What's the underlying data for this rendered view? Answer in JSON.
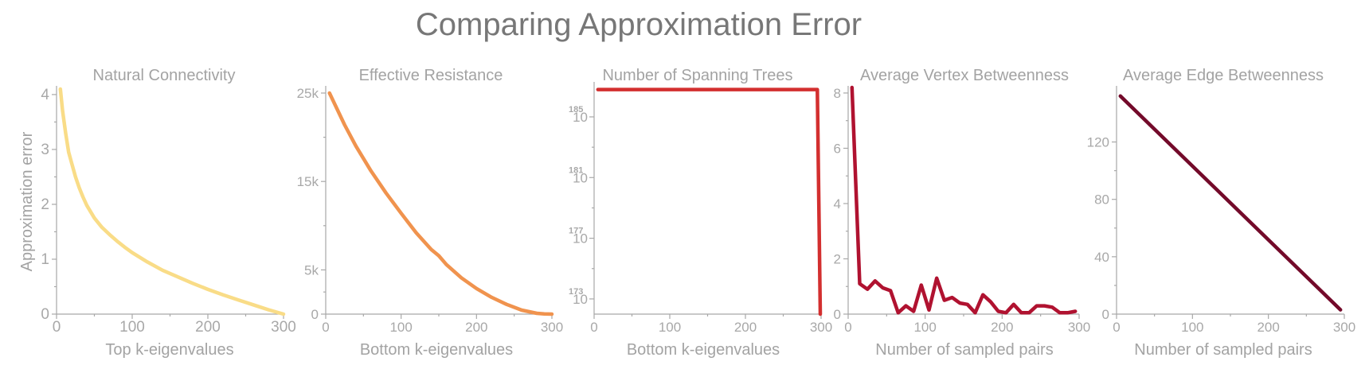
{
  "title": "Comparing Approximation Error",
  "colors": {
    "natural": "#f9dc87",
    "resistance": "#f0934e",
    "spanning": "#d32f2f",
    "vertex": "#b01230",
    "edge": "#730a2a",
    "axis": "#a8a8a8"
  },
  "chart_data": [
    {
      "type": "line",
      "title": "Natural Connectivity",
      "xlabel": "Top k-eigenvalues",
      "ylabel": "Approximation error",
      "xlim": [
        0,
        300
      ],
      "ylim": [
        0,
        4.1
      ],
      "xticks": [
        0,
        100,
        200,
        300
      ],
      "xtick_labels": [
        "0",
        "100",
        "200",
        "300"
      ],
      "yticks": [
        0,
        1,
        2,
        3,
        4
      ],
      "ytick_labels": [
        "0",
        "1",
        "2",
        "3",
        "4"
      ],
      "series": [
        {
          "color": "#f9dc87",
          "x": [
            5,
            8,
            12,
            16,
            20,
            25,
            30,
            35,
            40,
            50,
            60,
            70,
            80,
            90,
            100,
            120,
            140,
            160,
            180,
            200,
            220,
            240,
            260,
            280,
            300
          ],
          "y": [
            4.1,
            3.7,
            3.3,
            2.95,
            2.75,
            2.5,
            2.3,
            2.13,
            1.98,
            1.75,
            1.58,
            1.45,
            1.33,
            1.22,
            1.12,
            0.95,
            0.8,
            0.68,
            0.56,
            0.45,
            0.35,
            0.26,
            0.17,
            0.08,
            0.0
          ]
        }
      ]
    },
    {
      "type": "line",
      "title": "Effective Resistance",
      "xlabel": "Bottom k-eigenvalues",
      "xlim": [
        0,
        300
      ],
      "ylim": [
        0,
        25000
      ],
      "xticks": [
        0,
        100,
        200,
        300
      ],
      "xtick_labels": [
        "0",
        "100",
        "200",
        "300"
      ],
      "yticks": [
        0,
        5000,
        15000,
        25000
      ],
      "ytick_labels": [
        "0",
        "5k",
        "15k",
        "25k"
      ],
      "series": [
        {
          "color": "#f0934e",
          "x": [
            5,
            15,
            25,
            40,
            60,
            80,
            100,
            120,
            140,
            150,
            160,
            180,
            200,
            220,
            240,
            260,
            280,
            290,
            300
          ],
          "y": [
            25000,
            23200,
            21400,
            19000,
            16200,
            13700,
            11400,
            9200,
            7300,
            6600,
            5600,
            4100,
            2900,
            1900,
            1100,
            450,
            90,
            20,
            0
          ]
        }
      ]
    },
    {
      "type": "line",
      "title": "Number of Spanning Trees",
      "xlabel": "Bottom k-eigenvalues",
      "xlim": [
        0,
        300
      ],
      "ylim": [
        172,
        187.2
      ],
      "yscale": "log",
      "xticks": [
        0,
        100,
        200,
        300
      ],
      "xtick_labels": [
        "0",
        "100",
        "200",
        "300"
      ],
      "yticks": [
        173,
        177,
        181,
        185
      ],
      "ytick_base": "10",
      "ytick_exponents": [
        "173",
        "177",
        "181",
        "185"
      ],
      "series": [
        {
          "color": "#d32f2f",
          "x": [
            5,
            295,
            299
          ],
          "y": [
            186.8,
            186.8,
            172
          ]
        }
      ]
    },
    {
      "type": "line",
      "title": "Average Vertex Betweenness",
      "xlabel": "Number of sampled pairs",
      "xlim": [
        0,
        300
      ],
      "ylim": [
        0,
        8.2
      ],
      "xticks": [
        0,
        100,
        200,
        300
      ],
      "xtick_labels": [
        "0",
        "100",
        "200",
        "300"
      ],
      "yticks": [
        0,
        2,
        4,
        6,
        8
      ],
      "ytick_labels": [
        "0",
        "2",
        "4",
        "6",
        "8"
      ],
      "series": [
        {
          "color": "#b01230",
          "x": [
            5,
            15,
            25,
            35,
            45,
            55,
            65,
            75,
            85,
            95,
            105,
            115,
            125,
            135,
            145,
            155,
            165,
            175,
            185,
            195,
            205,
            215,
            225,
            235,
            245,
            255,
            265,
            275,
            285,
            295
          ],
          "y": [
            8.2,
            1.1,
            0.9,
            1.2,
            0.95,
            0.85,
            0.05,
            0.3,
            0.1,
            1.05,
            0.15,
            1.3,
            0.5,
            0.6,
            0.4,
            0.35,
            0.05,
            0.7,
            0.45,
            0.1,
            0.05,
            0.35,
            0.05,
            0.05,
            0.3,
            0.3,
            0.25,
            0.05,
            0.05,
            0.1
          ]
        }
      ]
    },
    {
      "type": "line",
      "title": "Average Edge Betweenness",
      "xlabel": "Number of sampled pairs",
      "xlim": [
        0,
        300
      ],
      "ylim": [
        0,
        158
      ],
      "xticks": [
        0,
        100,
        200,
        300
      ],
      "xtick_labels": [
        "0",
        "100",
        "200",
        "300"
      ],
      "yticks": [
        0,
        40,
        80,
        120
      ],
      "ytick_labels": [
        "0",
        "40",
        "80",
        "120"
      ],
      "series": [
        {
          "color": "#730a2a",
          "x": [
            5,
            295
          ],
          "y": [
            152,
            3
          ]
        }
      ]
    }
  ]
}
